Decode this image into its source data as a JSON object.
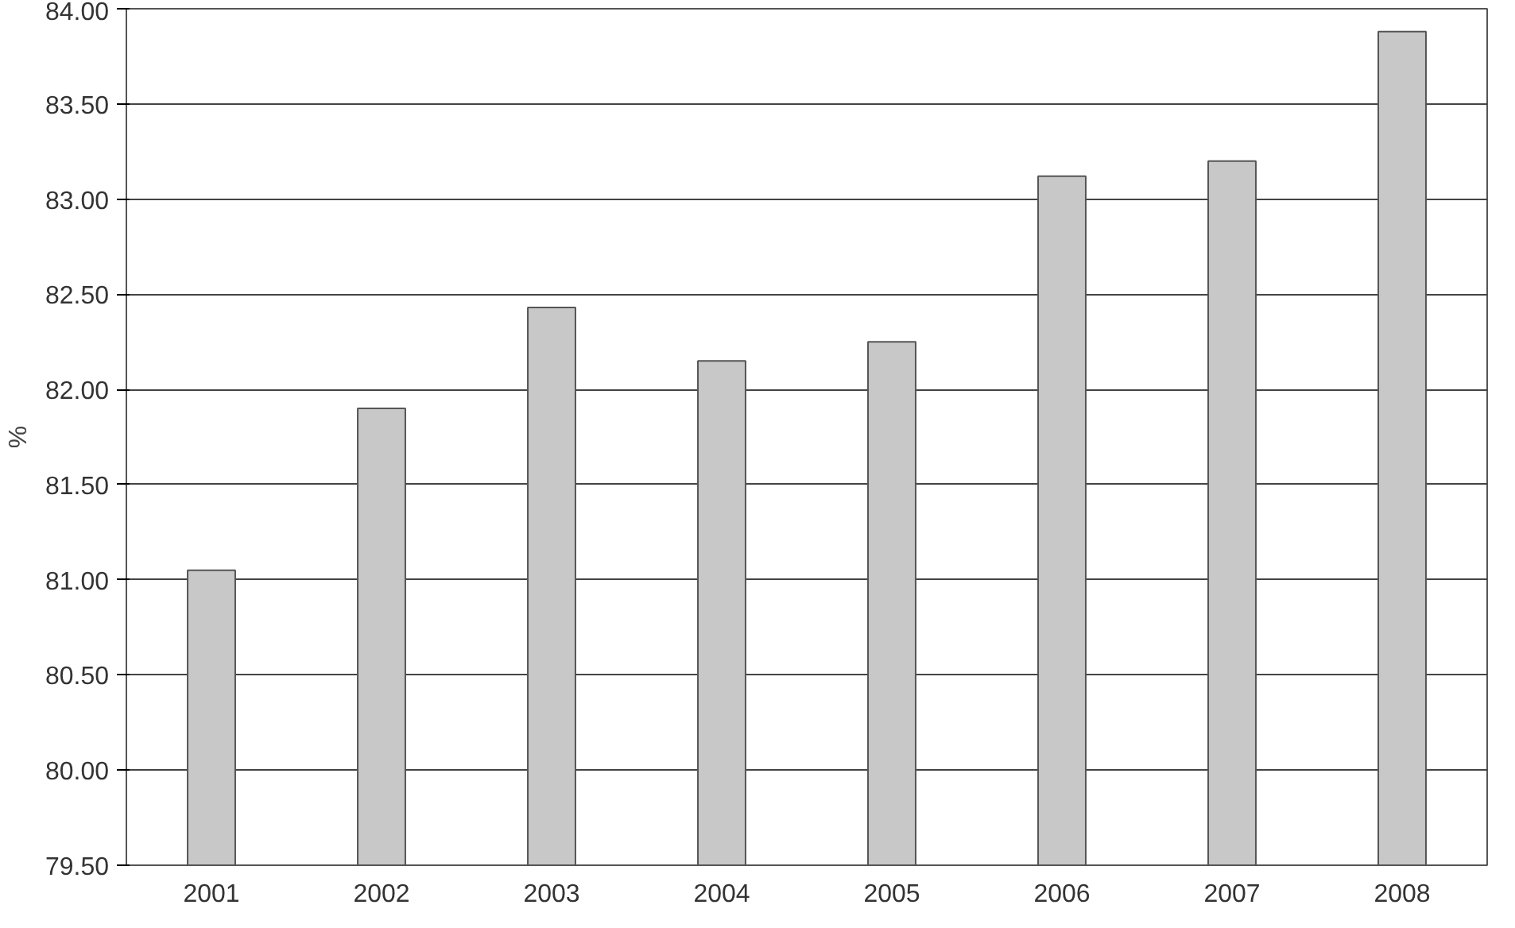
{
  "chart_data": {
    "type": "bar",
    "ylabel": "%",
    "categories": [
      "2001",
      "2002",
      "2003",
      "2004",
      "2005",
      "2006",
      "2007",
      "2008"
    ],
    "values": [
      81.05,
      81.9,
      82.43,
      82.15,
      82.25,
      83.12,
      83.2,
      83.88
    ],
    "color": "#c8c8c8",
    "ylim": [
      79.5,
      84
    ],
    "yticks": [
      {
        "value": 79.5,
        "label": "79.50"
      },
      {
        "value": 80,
        "label": "80.00"
      },
      {
        "value": 80.5,
        "label": "80.50"
      },
      {
        "value": 81,
        "label": "81.00"
      },
      {
        "value": 81.5,
        "label": "81.50"
      },
      {
        "value": 82,
        "label": "82.00"
      },
      {
        "value": 82.5,
        "label": "82.50"
      },
      {
        "value": 83,
        "label": "83.00"
      },
      {
        "value": 83.5,
        "label": "83.50"
      },
      {
        "value": 84,
        "label": "84.00"
      }
    ],
    "grid": "y"
  }
}
